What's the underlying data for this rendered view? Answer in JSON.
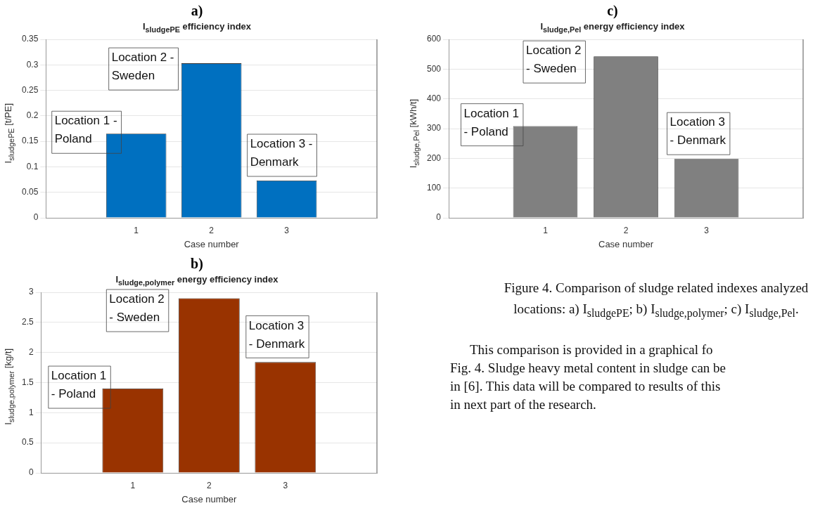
{
  "chart_data": [
    {
      "type": "bar",
      "title": "a)",
      "subtitle": "I$_{sludgePE}$ efficiency index",
      "xlabel": "Case number",
      "ylabel": "I$_{sludgePE}$ [t/PE]",
      "x": [
        1,
        2,
        3
      ],
      "values": [
        0.165,
        0.303,
        0.073
      ],
      "color": "#0070c0",
      "xlim": [
        -0.2,
        4.2
      ],
      "xticks": [
        1,
        2,
        3
      ],
      "ylim": [
        0,
        0.35
      ],
      "yticks": [
        0,
        0.05,
        0.1,
        0.15,
        0.2,
        0.25,
        0.3,
        0.35
      ],
      "grid": "y",
      "annotations": [
        "Location 1 -\nPoland",
        "Location 2 -\nSweden",
        "Location 3 -\nDenmark"
      ]
    },
    {
      "type": "bar",
      "title": "c)",
      "subtitle": "I$_{sludge,Pel}$ energy efficiency index",
      "xlabel": "Case number",
      "ylabel": "I$_{sludge,Pel}$ [kWh/t]",
      "x": [
        1,
        2,
        3
      ],
      "values": [
        308,
        543,
        198
      ],
      "color": "#808080",
      "xlim": [
        -0.2,
        4.2
      ],
      "xticks": [
        1,
        2,
        3
      ],
      "ylim": [
        0,
        600
      ],
      "yticks": [
        0,
        100,
        200,
        300,
        400,
        500,
        600
      ],
      "grid": "y",
      "annotations": [
        "Location 1\n- Poland",
        "Location 2\n- Sweden",
        "Location 3\n- Denmark"
      ]
    },
    {
      "type": "bar",
      "title": "b)",
      "subtitle": "I$_{sludge,polymer}$ energy efficiency index",
      "xlabel": "Case number",
      "ylabel": "I$_{sludge,polymer}$ [kg/t]",
      "x": [
        1,
        2,
        3
      ],
      "values": [
        1.4,
        2.9,
        1.84
      ],
      "color": "#993300",
      "xlim": [
        -0.2,
        4.2
      ],
      "xticks": [
        1,
        2,
        3
      ],
      "ylim": [
        0,
        3
      ],
      "yticks": [
        0,
        0.5,
        1,
        1.5,
        2,
        2.5,
        3
      ],
      "grid": "y",
      "annotations": [
        "Location 1\n- Poland",
        "Location 2\n- Sweden",
        "Location 3\n- Denmark"
      ]
    },
    {
      "type": "other",
      "title": "Figure 4. Comparison of sludge related indexes analyzed locations: a) I$_{sludgePE}$; b) I$_{sludge,polymer}$; c) I$_{sludge,Pel}$.",
      "annotations": [
        "This comparison is provided in a graphical fo",
        "Fig. 4. Sludge heavy metal content in sludge can be",
        "in [6]. This data will be compared to results of this",
        "in next part of the research."
      ]
    }
  ]
}
